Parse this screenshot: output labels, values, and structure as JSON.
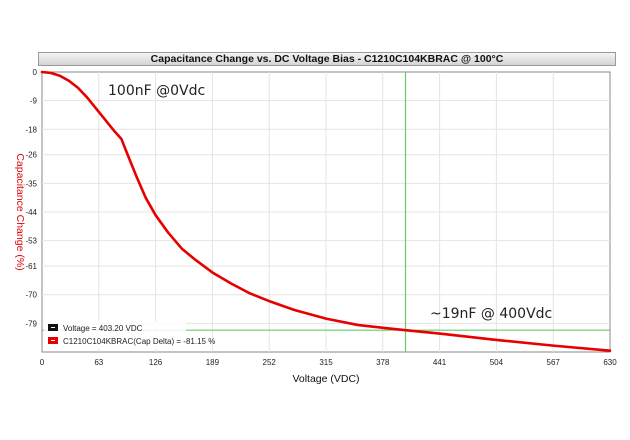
{
  "chart_data": {
    "type": "line",
    "title": "Capacitance Change vs. DC Voltage Bias - C1210C104KBRAC @ 100°C",
    "xlabel": "Voltage (VDC)",
    "ylabel": "Capacitance Change (%)",
    "xlim": [
      0,
      630
    ],
    "ylim": [
      -88,
      0
    ],
    "x_ticks": [
      "0",
      "63",
      "126",
      "189",
      "252",
      "315",
      "378",
      "441",
      "504",
      "567",
      "630"
    ],
    "y_ticks": [
      "0",
      "-9",
      "-18",
      "-26",
      "-35",
      "-44",
      "-53",
      "-61",
      "-70",
      "-79"
    ],
    "grid": true,
    "series": [
      {
        "name": "C1210C104KBRAC(Cap Delta)",
        "color": "#e60000",
        "x": [
          0,
          10,
          20,
          30,
          40,
          50,
          60,
          70,
          80,
          88,
          95,
          105,
          115,
          126,
          140,
          155,
          170,
          189,
          210,
          230,
          252,
          280,
          315,
          350,
          378,
          403.2,
          441,
          504,
          567,
          630
        ],
        "y": [
          0,
          -0.3,
          -1.2,
          -2.8,
          -5,
          -8,
          -11.5,
          -15,
          -18.5,
          -21,
          -26,
          -33,
          -39.5,
          -45,
          -50.5,
          -55.5,
          -59,
          -63,
          -66.5,
          -69.5,
          -72,
          -74.8,
          -77.5,
          -79.5,
          -80.4,
          -81.15,
          -82.2,
          -84.2,
          -86,
          -87.6
        ]
      }
    ],
    "cursor": {
      "x": 403.2,
      "y": -81.15,
      "color": "#66cc66"
    },
    "legend": {
      "position": "bottom-left",
      "entries": [
        {
          "swatch": "#111111",
          "label": "Voltage = 403.20 VDC"
        },
        {
          "swatch": "#e60000",
          "label": "C1210C104KBRAC(Cap Delta) = -81.15 %"
        }
      ]
    },
    "annotations": [
      "100nF @0Vdc",
      "~19nF @ 400Vdc"
    ]
  }
}
